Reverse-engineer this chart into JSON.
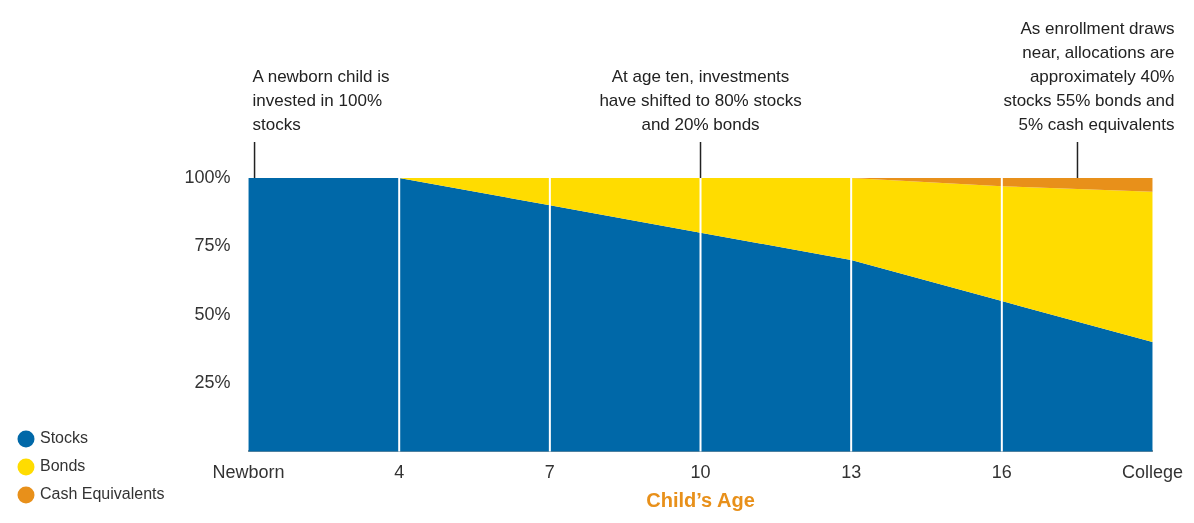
{
  "chart_data": {
    "type": "area",
    "stacked": true,
    "xlabel": "Child’s Age",
    "categories": [
      "Newborn",
      "4",
      "7",
      "10",
      "13",
      "16",
      "College"
    ],
    "series": [
      {
        "name": "Stocks",
        "color": "#0068a8",
        "values": [
          100,
          100,
          90,
          80,
          70,
          55,
          40
        ]
      },
      {
        "name": "Bonds",
        "color": "#ffdc00",
        "values": [
          0,
          0,
          10,
          20,
          30,
          42,
          55
        ]
      },
      {
        "name": "Cash Equivalents",
        "color": "#e8901a",
        "values": [
          0,
          0,
          0,
          0,
          0,
          3,
          5
        ]
      }
    ],
    "ylim": [
      0,
      100
    ],
    "yticks": [
      {
        "value": 25,
        "label": "25%"
      },
      {
        "value": 50,
        "label": "50%"
      },
      {
        "value": 75,
        "label": "75%"
      },
      {
        "value": 100,
        "label": "100%"
      }
    ],
    "grid": "x",
    "legend": "left",
    "annotations": [
      {
        "text": "A newborn child is invested in 100% stocks",
        "x": "Newborn",
        "y": 100
      },
      {
        "text": "At age ten, investments have shifted to 80% stocks and 20% bonds",
        "x": "10",
        "y": 100
      },
      {
        "text": "As enrollment draws near, allocations are approximately 40% stocks 55% bonds and 5% cash equivalents",
        "x": "College",
        "y": 100
      }
    ]
  }
}
